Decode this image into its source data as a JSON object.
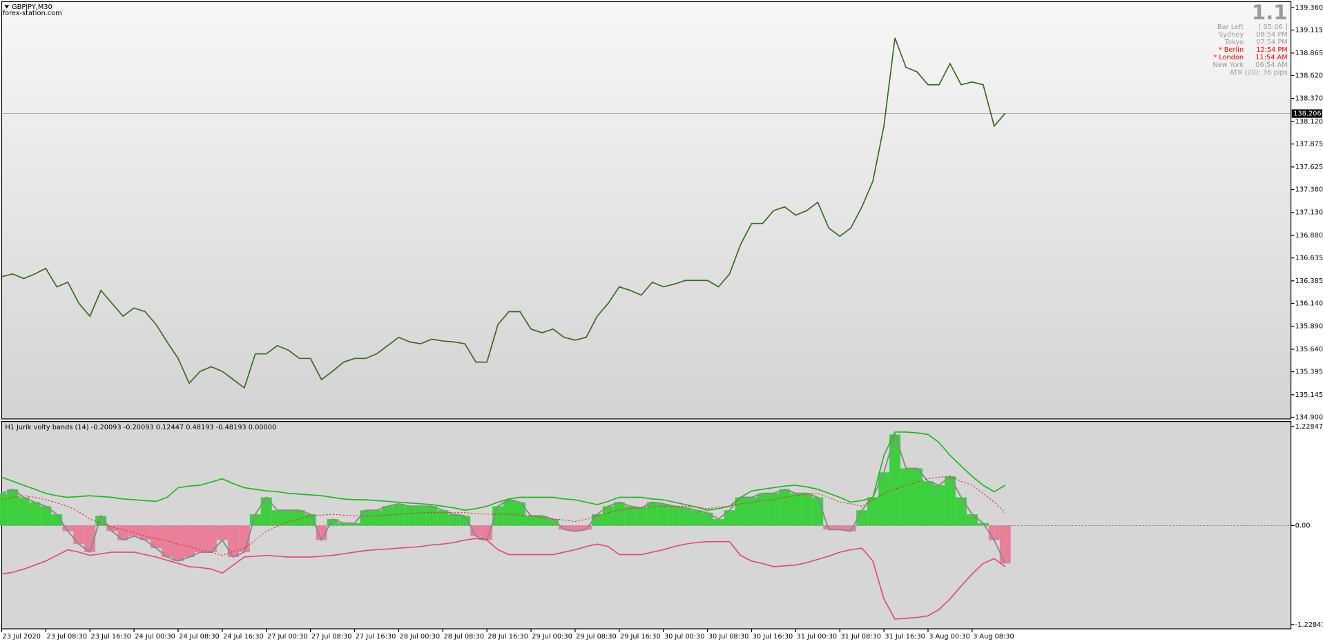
{
  "chart_data": [
    {
      "type": "line",
      "title": "GBPJPY,M30",
      "subtitle": "forex-station.com",
      "color": "#3a6b20",
      "values": [
        136.43,
        136.46,
        136.41,
        136.46,
        136.52,
        136.32,
        136.37,
        136.14,
        136.0,
        136.28,
        136.14,
        136.0,
        136.09,
        136.05,
        135.91,
        135.72,
        135.54,
        135.27,
        135.4,
        135.45,
        135.4,
        135.31,
        135.22,
        135.59,
        135.59,
        135.68,
        135.63,
        135.54,
        135.54,
        135.31,
        135.4,
        135.5,
        135.54,
        135.54,
        135.59,
        135.68,
        135.77,
        135.72,
        135.7,
        135.75,
        135.73,
        135.72,
        135.7,
        135.5,
        135.5,
        135.91,
        136.05,
        136.05,
        135.86,
        135.82,
        135.86,
        135.77,
        135.74,
        135.77,
        136.0,
        136.14,
        136.32,
        136.28,
        136.23,
        136.37,
        136.32,
        136.35,
        136.39,
        136.39,
        136.39,
        136.32,
        136.46,
        136.78,
        137.01,
        137.01,
        137.15,
        137.19,
        137.1,
        137.15,
        137.24,
        136.96,
        136.87,
        136.96,
        137.19,
        137.47,
        138.07,
        139.03,
        138.71,
        138.66,
        138.52,
        138.52,
        138.75,
        138.52,
        138.55,
        138.52,
        138.07,
        138.21
      ],
      "ylim": [
        134.9,
        139.36
      ],
      "yticks": [
        {
          "value": 139.36,
          "label": "139.360"
        },
        {
          "value": 139.115,
          "label": "139.115"
        },
        {
          "value": 138.865,
          "label": "138.865"
        },
        {
          "value": 138.62,
          "label": "138.620"
        },
        {
          "value": 138.37,
          "label": "138.370"
        },
        {
          "value": 138.12,
          "label": "138.120"
        },
        {
          "value": 137.875,
          "label": "137.875"
        },
        {
          "value": 137.625,
          "label": "137.625"
        },
        {
          "value": 137.38,
          "label": "137.380"
        },
        {
          "value": 137.13,
          "label": "137.130"
        },
        {
          "value": 136.88,
          "label": "136.880"
        },
        {
          "value": 136.635,
          "label": "136.635"
        },
        {
          "value": 136.385,
          "label": "136.385"
        },
        {
          "value": 136.14,
          "label": "136.140"
        },
        {
          "value": 135.89,
          "label": "135.890"
        },
        {
          "value": 135.64,
          "label": "135.640"
        },
        {
          "value": 135.395,
          "label": "135.395"
        },
        {
          "value": 135.145,
          "label": "135.145"
        },
        {
          "value": 134.9,
          "label": "134.900"
        }
      ],
      "current_price": {
        "value": 138.206,
        "label": "138.206"
      }
    },
    {
      "type": "bar",
      "title": "H1 Jurik volty bands (14) -0.20093 -0.20093 0.12447 0.48193 -0.48193 0.00000",
      "positive_color": "#3ecf3e",
      "negative_color": "#e8809a",
      "categories": [
        "23 Jul 2020",
        null,
        null,
        null,
        "23 Jul 08:30",
        null,
        null,
        null,
        "23 Jul 16:30",
        null,
        null,
        null,
        "24 Jul 00:30",
        null,
        null,
        null,
        "24 Jul 08:30",
        null,
        null,
        null,
        "24 Jul 16:30",
        null,
        null,
        null,
        "27 Jul 00:30",
        null,
        null,
        null,
        "27 Jul 08:30",
        null,
        null,
        null,
        "27 Jul 16:30",
        null,
        null,
        null,
        "28 Jul 00:30",
        null,
        null,
        null,
        "28 Jul 08:30",
        null,
        null,
        null,
        "28 Jul 16:30",
        null,
        null,
        null,
        "29 Jul 00:30",
        null,
        null,
        null,
        "29 Jul 08:30",
        null,
        null,
        null,
        "29 Jul 16:30",
        null,
        null,
        null,
        "30 Jul 00:30",
        null,
        null,
        null,
        "30 Jul 08:30",
        null,
        null,
        null,
        "30 Jul 16:30",
        null,
        null,
        null,
        "31 Jul 00:30",
        null,
        null,
        null,
        "31 Jul 08:30",
        null,
        null,
        null,
        "31 Jul 16:30",
        null,
        null,
        null,
        "3 Aug 00:30",
        null,
        null,
        null,
        "3 Aug 08:30",
        null,
        null,
        null
      ],
      "values": [
        0.4,
        0.45,
        0.35,
        0.29,
        0.24,
        0.14,
        -0.07,
        -0.23,
        -0.33,
        0.12,
        -0.07,
        -0.18,
        -0.13,
        -0.18,
        -0.28,
        -0.39,
        -0.44,
        -0.39,
        -0.33,
        -0.33,
        -0.18,
        -0.39,
        -0.33,
        0.14,
        0.35,
        0.19,
        0.19,
        0.19,
        0.14,
        -0.18,
        0.08,
        0.03,
        0.03,
        0.19,
        0.19,
        0.24,
        0.27,
        0.24,
        0.24,
        0.24,
        0.19,
        0.14,
        0.12,
        -0.13,
        -0.18,
        0.24,
        0.32,
        0.29,
        0.12,
        0.12,
        0.08,
        -0.05,
        -0.07,
        -0.05,
        0.14,
        0.24,
        0.29,
        0.24,
        0.22,
        0.29,
        0.27,
        0.24,
        0.22,
        0.19,
        0.16,
        0.08,
        0.19,
        0.35,
        0.35,
        0.4,
        0.4,
        0.45,
        0.4,
        0.4,
        0.35,
        -0.05,
        -0.05,
        -0.07,
        0.19,
        0.35,
        0.66,
        1.13,
        0.71,
        0.71,
        0.55,
        0.5,
        0.61,
        0.35,
        0.14,
        0.03,
        -0.18,
        -0.47
      ],
      "series": [
        {
          "color": "#22b822",
          "values": [
            0.6,
            0.55,
            0.5,
            0.45,
            0.4,
            0.37,
            0.35,
            0.36,
            0.37,
            0.36,
            0.35,
            0.33,
            0.32,
            0.31,
            0.3,
            0.35,
            0.47,
            0.49,
            0.5,
            0.54,
            0.58,
            0.52,
            0.47,
            0.45,
            0.43,
            0.42,
            0.4,
            0.39,
            0.38,
            0.37,
            0.35,
            0.33,
            0.32,
            0.32,
            0.31,
            0.3,
            0.29,
            0.28,
            0.27,
            0.26,
            0.24,
            0.22,
            0.19,
            0.21,
            0.24,
            0.29,
            0.33,
            0.35,
            0.35,
            0.35,
            0.35,
            0.33,
            0.32,
            0.29,
            0.26,
            0.3,
            0.35,
            0.35,
            0.35,
            0.33,
            0.32,
            0.29,
            0.26,
            0.23,
            0.19,
            0.21,
            0.24,
            0.35,
            0.43,
            0.45,
            0.47,
            0.49,
            0.5,
            0.48,
            0.45,
            0.4,
            0.35,
            0.29,
            0.31,
            0.35,
            0.87,
            1.16,
            1.16,
            1.15,
            1.13,
            1.03,
            0.87,
            0.74,
            0.61,
            0.5,
            0.42,
            0.5
          ]
        },
        {
          "color": "#e04c7c",
          "values": [
            -0.6,
            -0.58,
            -0.54,
            -0.49,
            -0.44,
            -0.37,
            -0.3,
            -0.33,
            -0.37,
            -0.35,
            -0.33,
            -0.33,
            -0.33,
            -0.36,
            -0.39,
            -0.43,
            -0.47,
            -0.51,
            -0.52,
            -0.54,
            -0.59,
            -0.49,
            -0.39,
            -0.38,
            -0.37,
            -0.38,
            -0.39,
            -0.39,
            -0.39,
            -0.38,
            -0.37,
            -0.35,
            -0.33,
            -0.31,
            -0.3,
            -0.29,
            -0.28,
            -0.27,
            -0.26,
            -0.24,
            -0.23,
            -0.21,
            -0.18,
            -0.16,
            -0.18,
            -0.3,
            -0.36,
            -0.36,
            -0.36,
            -0.36,
            -0.36,
            -0.33,
            -0.3,
            -0.26,
            -0.23,
            -0.26,
            -0.36,
            -0.36,
            -0.36,
            -0.33,
            -0.3,
            -0.26,
            -0.23,
            -0.21,
            -0.2,
            -0.2,
            -0.2,
            -0.37,
            -0.44,
            -0.47,
            -0.51,
            -0.5,
            -0.49,
            -0.46,
            -0.42,
            -0.38,
            -0.33,
            -0.3,
            -0.28,
            -0.44,
            -0.91,
            -1.16,
            -1.15,
            -1.14,
            -1.12,
            -1.04,
            -0.91,
            -0.75,
            -0.6,
            -0.47,
            -0.41,
            -0.51
          ]
        },
        {
          "color": "#e02020",
          "dashed": true,
          "values": [
            0.32,
            0.35,
            0.37,
            0.35,
            0.32,
            0.28,
            0.24,
            0.17,
            0.08,
            0.03,
            -0.02,
            -0.05,
            -0.09,
            -0.13,
            -0.16,
            -0.19,
            -0.23,
            -0.26,
            -0.3,
            -0.33,
            -0.37,
            -0.32,
            -0.28,
            -0.18,
            -0.07,
            -0.01,
            0.05,
            0.08,
            0.12,
            0.13,
            0.14,
            0.13,
            0.12,
            0.12,
            0.12,
            0.13,
            0.14,
            0.15,
            0.16,
            0.16,
            0.16,
            0.16,
            0.16,
            0.15,
            0.14,
            0.14,
            0.14,
            0.13,
            0.12,
            0.1,
            0.08,
            0.07,
            0.05,
            0.08,
            0.12,
            0.16,
            0.19,
            0.21,
            0.22,
            0.23,
            0.24,
            0.24,
            0.24,
            0.23,
            0.21,
            0.23,
            0.24,
            0.27,
            0.29,
            0.31,
            0.32,
            0.35,
            0.37,
            0.39,
            0.4,
            0.35,
            0.29,
            0.27,
            0.24,
            0.32,
            0.4,
            0.45,
            0.5,
            0.54,
            0.58,
            0.6,
            0.61,
            0.55,
            0.5,
            0.4,
            0.29,
            0.16
          ]
        }
      ],
      "ylim": [
        -1.22847,
        1.22847
      ],
      "yticks": [
        1.22847,
        {
          "value": 0,
          "label": "0.00"
        },
        -1.22847
      ]
    }
  ],
  "info_panel": {
    "version": "1.1",
    "rows": [
      {
        "label": "Bar Left",
        "value": "[ 05:06 ]",
        "color": "#9a9a9a"
      },
      {
        "label": "Sydney",
        "value": "08:54 PM",
        "color": "#9a9a9a"
      },
      {
        "label": "Tokyo",
        "value": "07:54 PM",
        "color": "#9a9a9a"
      },
      {
        "label": "* Berlin",
        "value": "12:54 PM",
        "color": "#ff0000"
      },
      {
        "label": "* London",
        "value": "11:54 AM",
        "color": "#ff0000"
      },
      {
        "label": "New York",
        "value": "06:54 AM",
        "color": "#9a9a9a"
      }
    ],
    "atr": "ATR (20): 36 pips"
  }
}
